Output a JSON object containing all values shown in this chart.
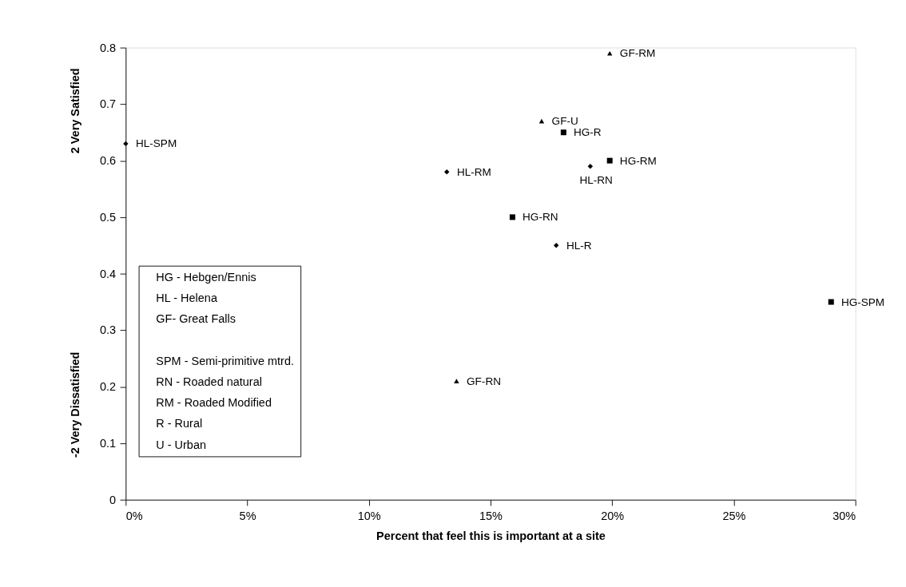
{
  "chart_data": {
    "type": "scatter",
    "xlabel": "Percent that feel this is important at a site",
    "ylabel": "2 Very Satisfied",
    "xlim": [
      0,
      30
    ],
    "ylim": [
      0,
      0.8
    ],
    "xticks": [
      {
        "value": 0,
        "label": "0%"
      },
      {
        "value": 5,
        "label": "5%"
      },
      {
        "value": 10,
        "label": "10%"
      },
      {
        "value": 15,
        "label": "15%"
      },
      {
        "value": 20,
        "label": "20%"
      },
      {
        "value": 25,
        "label": "25%"
      },
      {
        "value": 30,
        "label": "30%"
      }
    ],
    "yticks": [
      0,
      0.1,
      0.2,
      0.3,
      0.4,
      0.5,
      0.6,
      0.7,
      0.8
    ],
    "grid": false,
    "series": [
      {
        "color": "#000000",
        "marker": "square",
        "x": [
          18.0,
          19.9,
          15.9,
          29.0
        ],
        "values": [
          0.65,
          0.6,
          0.5,
          0.35
        ]
      },
      {
        "color": "#000000",
        "marker": "diamond",
        "x": [
          0,
          13.2,
          19.1,
          17.7
        ],
        "values": [
          0.63,
          0.58,
          0.59,
          0.45
        ]
      },
      {
        "color": "#000000",
        "marker": "triangle",
        "x": [
          19.9,
          17.1,
          13.6
        ],
        "values": [
          0.79,
          0.67,
          0.21
        ]
      }
    ],
    "annotations": [
      "-2 Very Dissatisfied",
      "HG - Hebgen/Ennis",
      "HL - Helena",
      "GF- Great Falls",
      "SPM - Semi-primitive mtrd.",
      "RN - Roaded natural",
      "RM -  Roaded Modified",
      "R - Rural",
      "U - Urban",
      {
        "text": "HG-R",
        "x": 18.0,
        "y": 0.65
      },
      {
        "text": "HG-RM",
        "x": 19.9,
        "y": 0.6
      },
      {
        "text": "HG-RN",
        "x": 15.9,
        "y": 0.5
      },
      {
        "text": "HG-SPM",
        "x": 29.0,
        "y": 0.35
      },
      {
        "text": "HL-SPM",
        "x": 0,
        "y": 0.63
      },
      {
        "text": "HL-RM",
        "x": 13.2,
        "y": 0.58
      },
      {
        "text": "HL-RN",
        "x": 19.1,
        "y": 0.59
      },
      {
        "text": "HL-R",
        "x": 17.7,
        "y": 0.45
      },
      {
        "text": "GF-RM",
        "x": 19.9,
        "y": 0.79
      },
      {
        "text": "GF-U",
        "x": 17.1,
        "y": 0.67
      },
      {
        "text": "GF-RN",
        "x": 13.6,
        "y": 0.21
      }
    ]
  }
}
